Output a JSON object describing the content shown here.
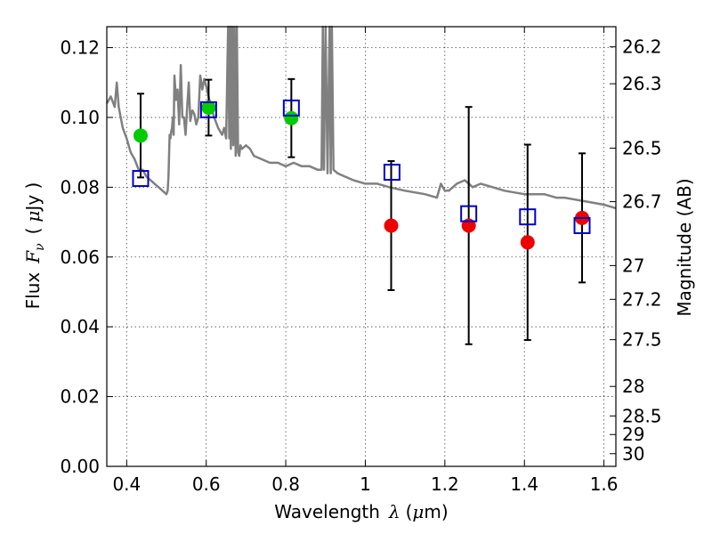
{
  "chart_data": {
    "type": "scatter",
    "xlabel_text": "Wavelength",
    "xlabel_symbol": "λ",
    "xlabel_unit_open": "(",
    "xlabel_unit_mu": "μ",
    "xlabel_unit_close": "m)",
    "ylabel_text": "Flux",
    "ylabel_symbol": "F",
    "ylabel_subscript": "ν",
    "ylabel_unit_open": "(",
    "ylabel_unit_mu": "μ",
    "ylabel_unit_close": "Jy )",
    "y2label": "Magnitude (AB)",
    "xlim": [
      0.35,
      1.63
    ],
    "ylim": [
      0.0,
      0.126
    ],
    "grid": true,
    "x_ticks": [
      0.4,
      0.6,
      0.8,
      1.0,
      1.2,
      1.4,
      1.6
    ],
    "x_tick_labels": [
      "0.4",
      "0.6",
      "0.8",
      "1",
      "1.2",
      "1.4",
      "1.6"
    ],
    "y_ticks": [
      0.0,
      0.02,
      0.04,
      0.06,
      0.08,
      0.1,
      0.12
    ],
    "y_tick_labels": [
      "0.00",
      "0.02",
      "0.04",
      "0.06",
      "0.08",
      "0.10",
      "0.12"
    ],
    "mag_ticks": [
      26.2,
      26.3,
      26.5,
      26.7,
      27,
      27.2,
      27.5,
      28,
      28.5,
      29,
      30
    ],
    "mag_tick_labels": [
      "26.2",
      "26.3",
      "26.5",
      "26.7",
      "27",
      "27.2",
      "27.5",
      "28",
      "28.5",
      "29",
      "30"
    ],
    "colors": {
      "model": "#808080",
      "green_points": "#00cc00",
      "red_points": "#ee0000",
      "squares": "#0000cc",
      "errorbars": "#000000"
    },
    "series": [
      {
        "kind": "observed_green",
        "points": [
          {
            "x": 0.435,
            "y": 0.0948,
            "err": 0.012
          },
          {
            "x": 0.606,
            "y": 0.1028,
            "err": 0.008
          },
          {
            "x": 0.814,
            "y": 0.0998,
            "err": 0.0112
          }
        ]
      },
      {
        "kind": "observed_red",
        "points": [
          {
            "x": 1.065,
            "y": 0.069,
            "err": 0.0185
          },
          {
            "x": 1.26,
            "y": 0.069,
            "err": 0.034
          },
          {
            "x": 1.408,
            "y": 0.0642,
            "err": 0.028
          },
          {
            "x": 1.545,
            "y": 0.0712,
            "err": 0.0185
          }
        ]
      },
      {
        "kind": "model_bandpass_squares",
        "points": [
          {
            "x": 0.435,
            "y": 0.0825
          },
          {
            "x": 0.606,
            "y": 0.1022
          },
          {
            "x": 0.814,
            "y": 0.1027
          },
          {
            "x": 1.067,
            "y": 0.0843
          },
          {
            "x": 1.26,
            "y": 0.0724
          },
          {
            "x": 1.408,
            "y": 0.0715
          },
          {
            "x": 1.545,
            "y": 0.069
          }
        ]
      },
      {
        "kind": "model_spectrum",
        "x": [
          0.35,
          0.36,
          0.37,
          0.375,
          0.38,
          0.39,
          0.4,
          0.41,
          0.42,
          0.43,
          0.44,
          0.45,
          0.46,
          0.47,
          0.48,
          0.49,
          0.5,
          0.503,
          0.505,
          0.508,
          0.51,
          0.512,
          0.514,
          0.516,
          0.518,
          0.52,
          0.524,
          0.528,
          0.532,
          0.536,
          0.54,
          0.544,
          0.548,
          0.552,
          0.556,
          0.56,
          0.565,
          0.57,
          0.575,
          0.58,
          0.585,
          0.59,
          0.595,
          0.6,
          0.61,
          0.62,
          0.63,
          0.64,
          0.645,
          0.65,
          0.655,
          0.658,
          0.66,
          0.662,
          0.665,
          0.668,
          0.671,
          0.674,
          0.677,
          0.68,
          0.683,
          0.686,
          0.69,
          0.7,
          0.71,
          0.72,
          0.74,
          0.76,
          0.78,
          0.8,
          0.82,
          0.84,
          0.86,
          0.88,
          0.89,
          0.893,
          0.896,
          0.9,
          0.905,
          0.91,
          0.913,
          0.916,
          0.92,
          0.93,
          0.95,
          0.97,
          1.0,
          1.03,
          1.06,
          1.1,
          1.15,
          1.18,
          1.19,
          1.2,
          1.21,
          1.23,
          1.25,
          1.27,
          1.29,
          1.32,
          1.35,
          1.4,
          1.45,
          1.48,
          1.5,
          1.55,
          1.6,
          1.63
        ],
        "y": [
          0.104,
          0.106,
          0.103,
          0.11,
          0.103,
          0.097,
          0.094,
          0.09,
          0.088,
          0.085,
          0.085,
          0.083,
          0.082,
          0.081,
          0.08,
          0.079,
          0.078,
          0.079,
          0.083,
          0.095,
          0.094,
          0.096,
          0.097,
          0.1,
          0.095,
          0.112,
          0.105,
          0.108,
          0.098,
          0.115,
          0.1,
          0.1,
          0.095,
          0.103,
          0.11,
          0.099,
          0.102,
          0.101,
          0.098,
          0.1,
          0.112,
          0.108,
          0.111,
          0.109,
          0.104,
          0.1,
          0.097,
          0.095,
          0.097,
          0.094,
          0.126,
          0.094,
          0.126,
          0.091,
          0.126,
          0.092,
          0.126,
          0.089,
          0.126,
          0.09,
          0.089,
          0.092,
          0.091,
          0.092,
          0.091,
          0.089,
          0.088,
          0.087,
          0.087,
          0.086,
          0.087,
          0.086,
          0.086,
          0.085,
          0.085,
          0.126,
          0.085,
          0.126,
          0.084,
          0.126,
          0.084,
          0.126,
          0.085,
          0.084,
          0.083,
          0.082,
          0.081,
          0.081,
          0.08,
          0.079,
          0.078,
          0.077,
          0.081,
          0.079,
          0.079,
          0.081,
          0.082,
          0.08,
          0.081,
          0.08,
          0.079,
          0.078,
          0.078,
          0.077,
          0.077,
          0.076,
          0.075,
          0.074
        ]
      }
    ]
  }
}
